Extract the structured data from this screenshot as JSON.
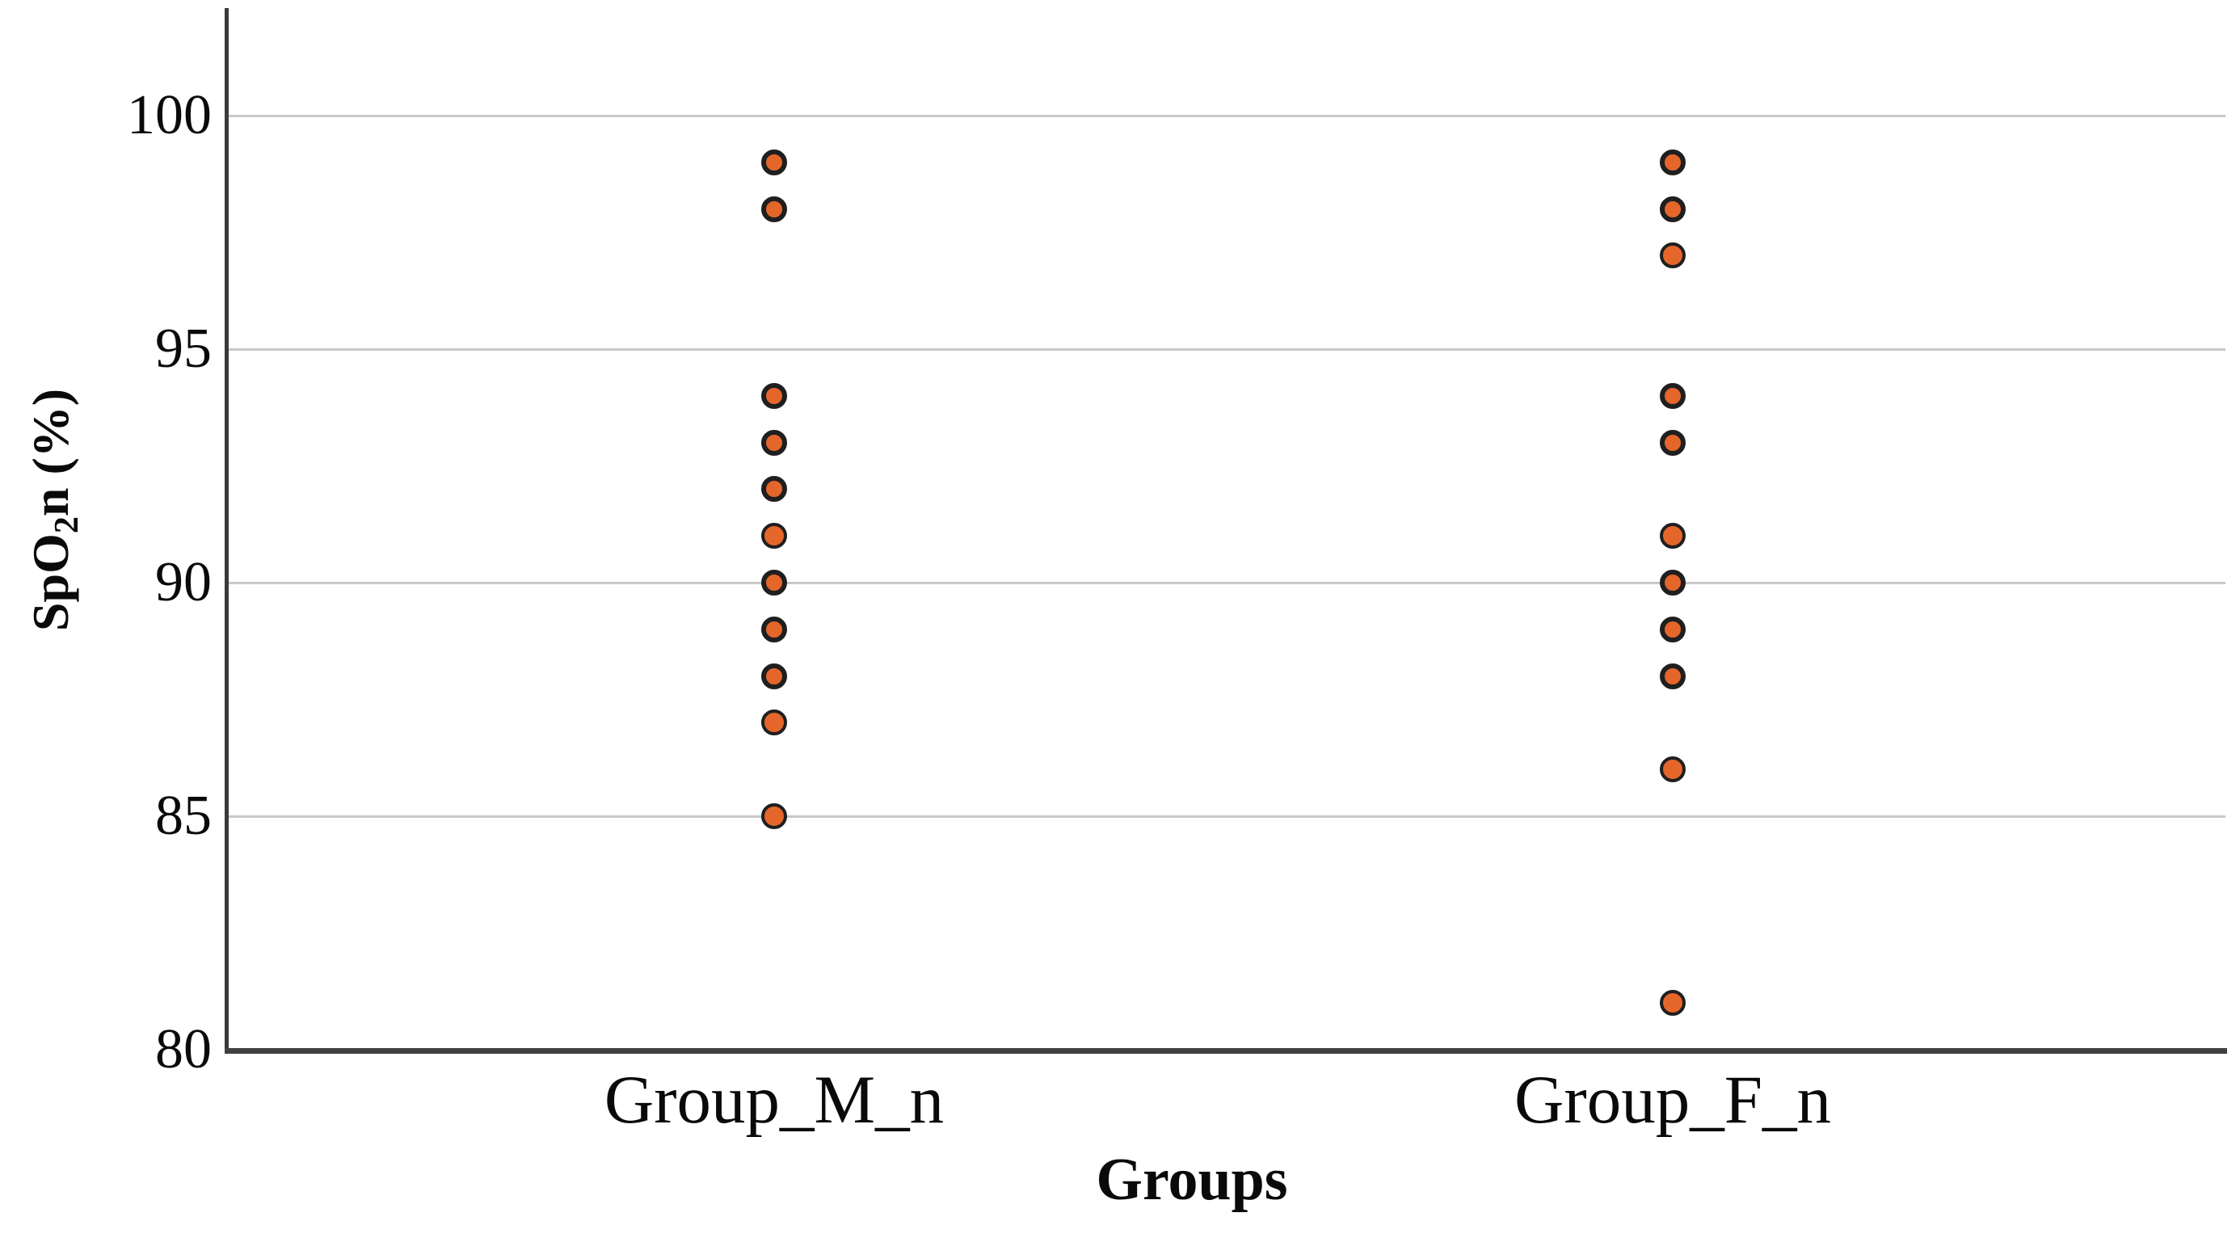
{
  "figure": {
    "background": "#ffffff"
  },
  "axes": {
    "y_title_prefix": "SpO",
    "y_title_sub": "2",
    "y_title_suffix": "n (%)",
    "x_title": "Groups"
  },
  "chart_data": {
    "type": "scatter",
    "title": "",
    "xlabel": "Groups",
    "ylabel": "SpO2n (%)",
    "ylim": [
      80,
      102.3
    ],
    "yticks": [
      100,
      95,
      90,
      85,
      80
    ],
    "gridlines": [
      100,
      95,
      90,
      85
    ],
    "grid_on": true,
    "legend_position": "none",
    "categories": [
      "Group_M_n",
      "Group_F_n"
    ],
    "series": [
      {
        "name": "Group_M_n",
        "values": [
          99,
          98,
          94,
          93,
          92,
          91,
          90,
          89,
          88,
          87,
          85
        ],
        "ring_style": [
          "thick",
          "thick",
          "thick",
          "thick",
          "thick",
          "thin",
          "thick",
          "thick",
          "thick",
          "thin",
          "thin"
        ]
      },
      {
        "name": "Group_F_n",
        "values": [
          99,
          98,
          97,
          94,
          93,
          91,
          90,
          89,
          88,
          86,
          81
        ],
        "ring_style": [
          "thick",
          "thick",
          "thin",
          "thick",
          "thick",
          "thin",
          "thick",
          "thick",
          "thick",
          "thin",
          "thin"
        ]
      }
    ],
    "colors": {
      "marker_fill": "#e5662b",
      "marker_stroke": "#1f1f1f",
      "gridline": "#c8c8c8",
      "y_axis_line": "#3a3a3a",
      "x_axis_line": "#404040",
      "text": "#0a0a0a"
    }
  }
}
